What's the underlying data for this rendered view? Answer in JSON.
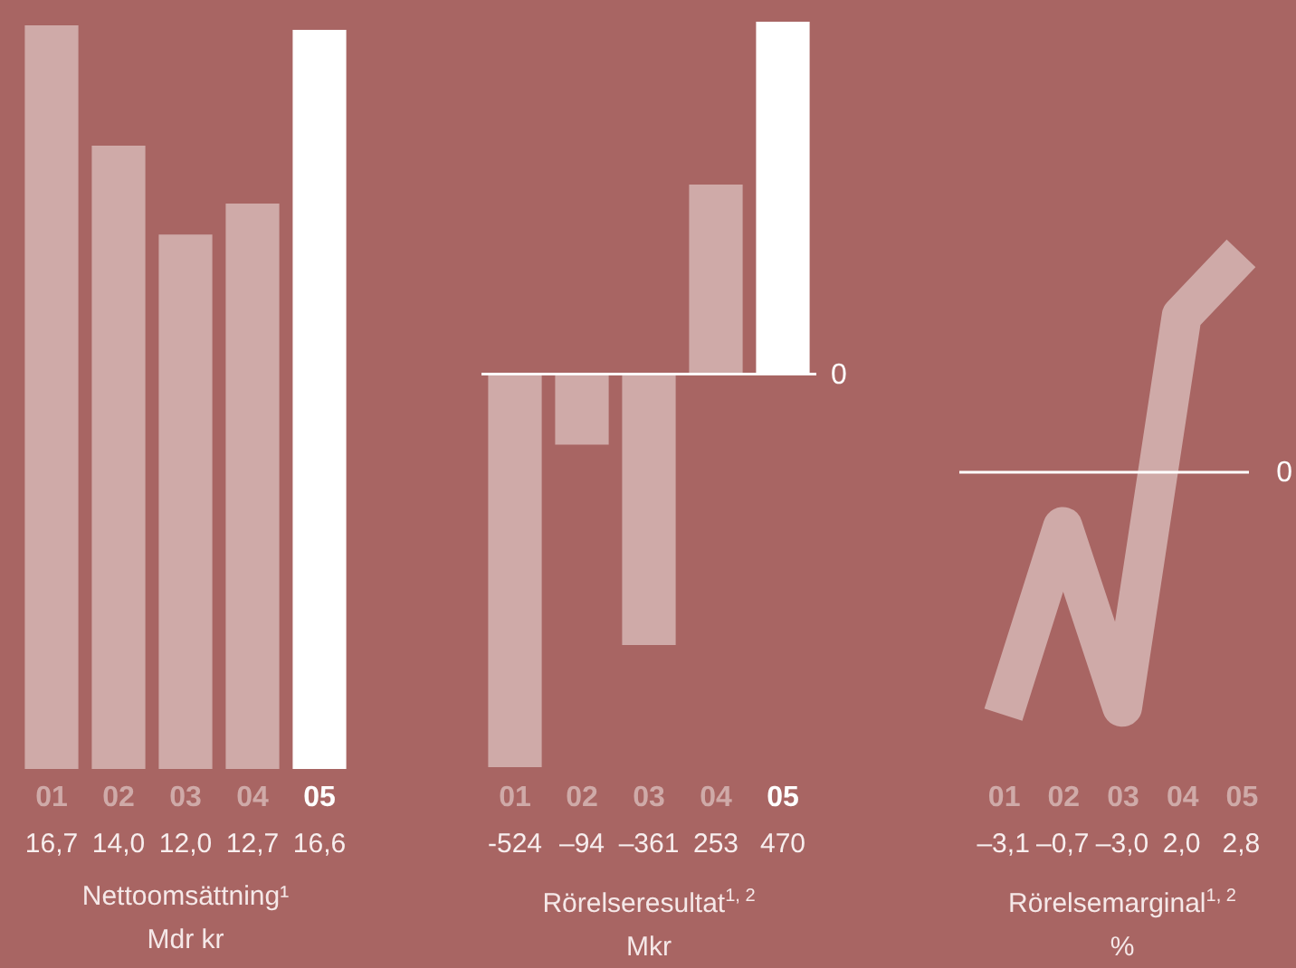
{
  "chart_data": [
    {
      "type": "bar",
      "title": "Nettoomsättning¹",
      "subtitle": "Mdr kr",
      "categories": [
        "01",
        "02",
        "03",
        "04",
        "05"
      ],
      "values": [
        16.7,
        14.0,
        12.0,
        12.7,
        16.6
      ],
      "value_labels": [
        "16,7",
        "14,0",
        "12,0",
        "12,7",
        "16,6"
      ],
      "colors": [
        "#cfaaa8",
        "#cfaaa8",
        "#cfaaa8",
        "#cfaaa8",
        "#ffffff"
      ]
    },
    {
      "type": "bar",
      "title": "Rörelseresultat$^{1, 2}$",
      "subtitle": "Mkr",
      "categories": [
        "01",
        "02",
        "03",
        "04",
        "05"
      ],
      "values": [
        -524,
        -94,
        -361,
        253,
        470
      ],
      "value_labels": [
        "-524",
        "–94",
        "–361",
        "253",
        "470"
      ],
      "colors": [
        "#cfaaa8",
        "#cfaaa8",
        "#cfaaa8",
        "#cfaaa8",
        "#ffffff"
      ],
      "ref_lines": [
        {
          "axis": "y",
          "value": 0,
          "label": "0",
          "color": "#ffffff"
        }
      ]
    },
    {
      "type": "line",
      "title": "Rörelsemarginal$^{1, 2}$",
      "subtitle": "%",
      "categories": [
        "01",
        "02",
        "03",
        "04",
        "05"
      ],
      "values": [
        -3.1,
        -0.7,
        -3.0,
        2.0,
        2.8
      ],
      "value_labels": [
        "–3,1",
        "–0,7",
        "–3,0",
        "2,0",
        "2,8"
      ],
      "color": "#cfaaa8",
      "ref_lines": [
        {
          "axis": "y",
          "value": 0,
          "label": "0",
          "color": "#ffffff"
        }
      ]
    }
  ]
}
